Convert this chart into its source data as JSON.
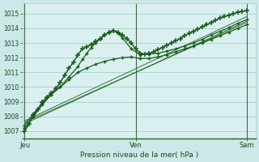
{
  "xlabel": "Pression niveau de la mer( hPa )",
  "bg_color": "#cce8e8",
  "plot_bg_color": "#daf0f0",
  "grid_color": "#aad4d4",
  "line_color_dark": "#1a5c1a",
  "line_color_light": "#2d8b2d",
  "ylim": [
    1006.5,
    1015.7
  ],
  "yticks": [
    1007,
    1008,
    1009,
    1010,
    1011,
    1012,
    1013,
    1014,
    1015
  ],
  "xtick_labels": [
    "Jeu",
    "Ven",
    "Sam"
  ],
  "xtick_positions": [
    0,
    0.5,
    1.0
  ],
  "xlim": [
    -0.01,
    1.04
  ],
  "series_main": {
    "x": [
      0.0,
      0.02,
      0.04,
      0.06,
      0.08,
      0.1,
      0.12,
      0.14,
      0.16,
      0.18,
      0.2,
      0.22,
      0.24,
      0.26,
      0.28,
      0.3,
      0.32,
      0.34,
      0.36,
      0.38,
      0.4,
      0.42,
      0.44,
      0.46,
      0.48,
      0.5,
      0.52,
      0.54,
      0.56,
      0.58,
      0.6,
      0.62,
      0.64,
      0.66,
      0.68,
      0.7,
      0.72,
      0.74,
      0.76,
      0.78,
      0.8,
      0.82,
      0.84,
      0.86,
      0.88,
      0.9,
      0.92,
      0.94,
      0.96,
      0.98,
      1.0
    ],
    "y": [
      1007.0,
      1007.5,
      1008.1,
      1008.5,
      1009.0,
      1009.3,
      1009.6,
      1009.9,
      1010.3,
      1010.8,
      1011.3,
      1011.7,
      1012.2,
      1012.6,
      1012.75,
      1012.9,
      1013.1,
      1013.3,
      1013.55,
      1013.7,
      1013.85,
      1013.75,
      1013.55,
      1013.3,
      1013.0,
      1012.6,
      1012.3,
      1012.25,
      1012.3,
      1012.4,
      1012.55,
      1012.7,
      1012.85,
      1013.0,
      1013.15,
      1013.3,
      1013.5,
      1013.65,
      1013.8,
      1013.95,
      1014.1,
      1014.25,
      1014.4,
      1014.55,
      1014.7,
      1014.8,
      1014.9,
      1015.0,
      1015.1,
      1015.15,
      1015.2
    ]
  },
  "series_peaked": [
    {
      "x": [
        0.0,
        0.04,
        0.08,
        0.12,
        0.16,
        0.2,
        0.24,
        0.26,
        0.28,
        0.3,
        0.32,
        0.34,
        0.36,
        0.38,
        0.4,
        0.42,
        0.44,
        0.48,
        0.52,
        0.56,
        0.6,
        0.64,
        0.68,
        0.72,
        0.76,
        0.8,
        0.84,
        0.88,
        0.92,
        0.96,
        1.0
      ],
      "y": [
        1007.2,
        1008.0,
        1008.8,
        1009.5,
        1010.0,
        1010.7,
        1011.4,
        1011.9,
        1012.3,
        1012.7,
        1013.0,
        1013.3,
        1013.55,
        1013.75,
        1013.85,
        1013.65,
        1013.35,
        1012.6,
        1012.2,
        1012.25,
        1012.3,
        1012.45,
        1012.6,
        1012.8,
        1013.0,
        1013.25,
        1013.55,
        1013.8,
        1014.05,
        1014.35,
        1014.6
      ]
    },
    {
      "x": [
        0.0,
        0.04,
        0.08,
        0.12,
        0.16,
        0.2,
        0.24,
        0.28,
        0.32,
        0.36,
        0.4,
        0.44,
        0.48,
        0.52,
        0.56,
        0.6,
        0.64,
        0.68,
        0.72,
        0.76,
        0.8,
        0.84,
        0.88,
        0.92,
        0.96,
        1.0
      ],
      "y": [
        1007.4,
        1008.2,
        1008.9,
        1009.5,
        1010.0,
        1010.5,
        1011.0,
        1011.3,
        1011.55,
        1011.75,
        1011.9,
        1012.0,
        1012.05,
        1011.95,
        1011.95,
        1012.05,
        1012.2,
        1012.4,
        1012.6,
        1012.8,
        1013.0,
        1013.25,
        1013.5,
        1013.75,
        1014.0,
        1014.25
      ]
    }
  ],
  "series_straight": [
    {
      "x": [
        0.0,
        1.0
      ],
      "y": [
        1007.5,
        1014.5
      ]
    },
    {
      "x": [
        0.0,
        1.0
      ],
      "y": [
        1007.6,
        1014.4
      ]
    },
    {
      "x": [
        0.0,
        1.0
      ],
      "y": [
        1007.7,
        1014.8
      ]
    }
  ]
}
